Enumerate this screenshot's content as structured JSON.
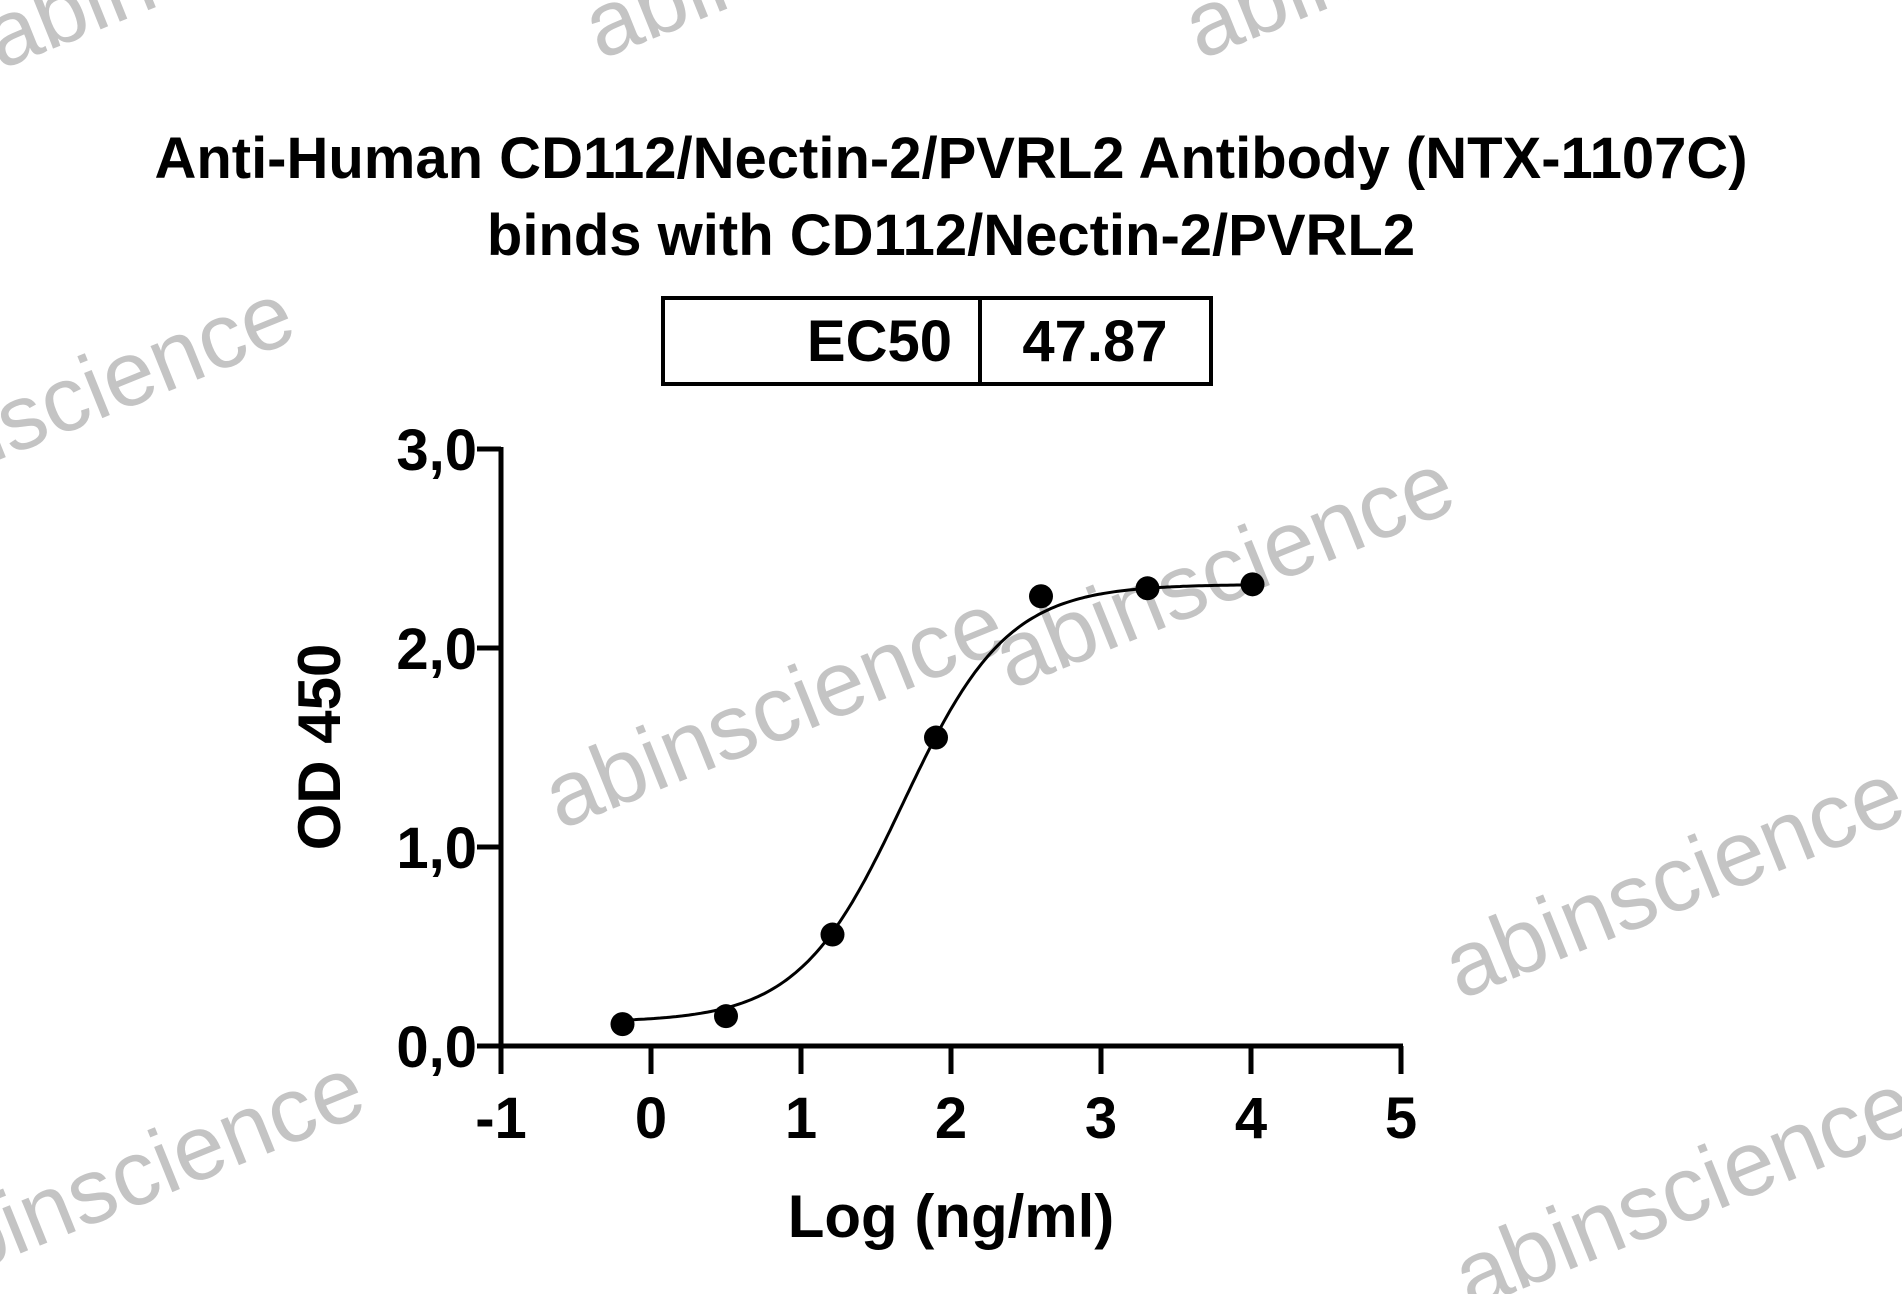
{
  "chart_data": {
    "type": "scatter",
    "title": "Anti-Human CD112/Nectin-2/PVRL2 Antibody (NTX-1107C)",
    "subtitle": "binds with CD112/Nectin-2/PVRL2",
    "ec50_table": {
      "label": "EC50",
      "value": "47.87"
    },
    "xlabel": "Log (ng/ml)",
    "ylabel": "OD 450",
    "xlim": [
      -1,
      5
    ],
    "ylim": [
      0,
      3
    ],
    "xticks": [
      "-1",
      "0",
      "1",
      "2",
      "3",
      "4",
      "5"
    ],
    "yticks": [
      "0,0",
      "1,0",
      "2,0",
      "3,0"
    ],
    "grid": false,
    "points": {
      "x": [
        -0.19,
        0.5,
        1.21,
        1.9,
        2.6,
        3.31,
        4.01
      ],
      "y": [
        0.11,
        0.15,
        0.56,
        1.55,
        2.26,
        2.3,
        2.32
      ]
    },
    "fit": {
      "model": "4PL",
      "bottom": 0.12,
      "top": 2.32,
      "logEC50": 1.68,
      "hill": 1.25
    },
    "marker_color": "#000000",
    "line_color": "#000000"
  },
  "watermark": "abinscience"
}
